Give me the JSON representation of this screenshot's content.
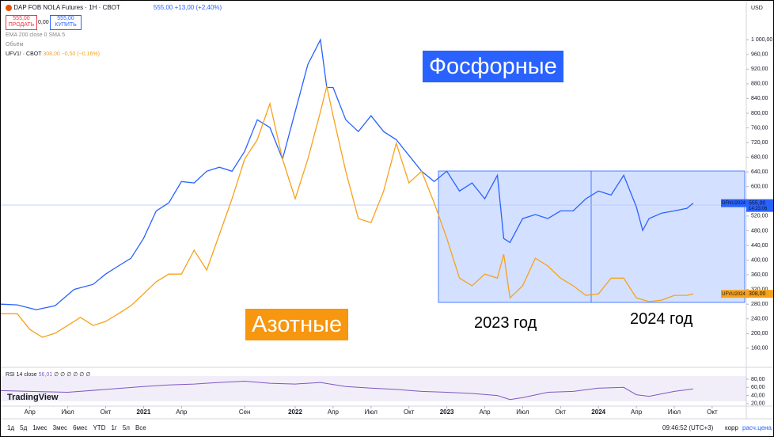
{
  "chart_data": [
    {
      "type": "line",
      "title": "DAP FOB NOLA Futures · 1Н · CBOT",
      "xlim": [
        0.7,
        59.7
      ],
      "xticks": [
        {
          "value": 3,
          "label": "Апр"
        },
        {
          "value": 6,
          "label": "Июл"
        },
        {
          "value": 9,
          "label": "Окт"
        },
        {
          "value": 12,
          "label": "2021"
        },
        {
          "value": 15,
          "label": "Апр"
        },
        {
          "value": 20,
          "label": "Сен"
        },
        {
          "value": 24,
          "label": "2022"
        },
        {
          "value": 27,
          "label": "Апр"
        },
        {
          "value": 30,
          "label": "Июл"
        },
        {
          "value": 33,
          "label": "Окт"
        },
        {
          "value": 36,
          "label": "2023"
        },
        {
          "value": 39,
          "label": "Апр"
        },
        {
          "value": 42,
          "label": "Июл"
        },
        {
          "value": 45,
          "label": "Окт"
        },
        {
          "value": 48,
          "label": "2024"
        },
        {
          "value": 51,
          "label": "Апр"
        },
        {
          "value": 54,
          "label": "Июл"
        },
        {
          "value": 57,
          "label": "Окт"
        }
      ],
      "ylim": [
        108,
        1106
      ],
      "yticks": [
        {
          "value": 1000,
          "label": "1 000,00"
        },
        {
          "value": 960,
          "label": "960,00"
        },
        {
          "value": 920,
          "label": "920,00"
        },
        {
          "value": 880,
          "label": "880,00"
        },
        {
          "value": 840,
          "label": "840,00"
        },
        {
          "value": 800,
          "label": "800,00"
        },
        {
          "value": 760,
          "label": "760,00"
        },
        {
          "value": 720,
          "label": "720,00"
        },
        {
          "value": 680,
          "label": "680,00"
        },
        {
          "value": 640,
          "label": "640,00"
        },
        {
          "value": 600,
          "label": "600,00"
        },
        {
          "value": 520,
          "label": "520,00"
        },
        {
          "value": 480,
          "label": "480,00"
        },
        {
          "value": 440,
          "label": "440,00"
        },
        {
          "value": 400,
          "label": "400,00"
        },
        {
          "value": 360,
          "label": "360,00"
        },
        {
          "value": 320,
          "label": "320,00"
        },
        {
          "value": 280,
          "label": "280,00"
        },
        {
          "value": 240,
          "label": "240,00"
        },
        {
          "value": 200,
          "label": "200,00"
        },
        {
          "value": 160,
          "label": "160,00"
        }
      ],
      "grid": false,
      "series": [
        {
          "name": "DFNU2024",
          "color": "#2962ff",
          "last_value_label": "555,00",
          "countdown": "14:23:06",
          "x": [
            0.7,
            2,
            3.5,
            5,
            6.5,
            8,
            9,
            10,
            11,
            12,
            13,
            14,
            15,
            16,
            17,
            18,
            19,
            20,
            21,
            22,
            23,
            24,
            25,
            26,
            26.5,
            27,
            28,
            29,
            30,
            31,
            32,
            33,
            34,
            35,
            36,
            37,
            38,
            39,
            40,
            40.5,
            41,
            42,
            43,
            44,
            45,
            46,
            47,
            48,
            49,
            50,
            51,
            51.5,
            52,
            53,
            54,
            55,
            55.5
          ],
          "values": [
            280,
            278,
            265,
            276,
            320,
            334,
            362,
            384,
            405,
            459,
            534,
            556,
            614,
            610,
            642,
            653,
            642,
            696,
            782,
            761,
            675,
            804,
            933,
            1000,
            870,
            870,
            782,
            750,
            793,
            750,
            728,
            685,
            642,
            614,
            642,
            588,
            610,
            567,
            631,
            459,
            448,
            513,
            524,
            513,
            534,
            534,
            567,
            588,
            577,
            631,
            545,
            481,
            513,
            528,
            534,
            541,
            555
          ]
        },
        {
          "name": "UFVU2024",
          "color": "#f7a21b",
          "last_value_label": "308,00",
          "x": [
            0.7,
            2,
            3,
            4,
            5,
            6,
            7,
            8,
            9,
            10,
            11,
            12,
            13,
            14,
            15,
            16,
            17,
            18,
            19,
            20,
            21,
            22,
            23,
            24,
            25,
            26,
            26.5,
            27,
            28,
            29,
            30,
            31,
            32,
            33,
            34,
            35,
            36,
            37,
            38,
            39,
            40,
            40.5,
            41,
            42,
            43,
            44,
            45,
            46,
            47,
            48,
            49,
            50,
            51,
            52,
            53,
            54,
            55,
            55.5
          ],
          "values": [
            254,
            254,
            211,
            190,
            201,
            222,
            244,
            222,
            233,
            254,
            276,
            308,
            341,
            362,
            362,
            427,
            373,
            470,
            567,
            675,
            728,
            826,
            675,
            567,
            675,
            804,
            873,
            793,
            642,
            513,
            502,
            588,
            718,
            610,
            642,
            556,
            459,
            351,
            330,
            362,
            351,
            416,
            297,
            330,
            405,
            384,
            351,
            330,
            304,
            308,
            351,
            351,
            297,
            287,
            291,
            304,
            304,
            308
          ]
        }
      ],
      "annotations": [
        "Фосфорные",
        "Азотные",
        "2023 год",
        "2024 год"
      ]
    },
    {
      "type": "line",
      "title": "RSI 14 close",
      "ylim": [
        14,
        109
      ],
      "yticks": [
        {
          "value": 80,
          "label": "80,00"
        },
        {
          "value": 60,
          "label": "60,00"
        },
        {
          "value": 40,
          "label": "40,00"
        },
        {
          "value": 20,
          "label": "20,00"
        }
      ],
      "series": [
        {
          "name": "RSI",
          "color": "#7e57c2",
          "last_value_label": "56,01",
          "x": [
            0.7,
            3,
            6,
            9,
            12,
            14,
            16,
            18,
            20,
            22,
            24,
            26,
            28,
            30,
            32,
            34,
            36,
            38,
            40,
            41,
            42,
            44,
            46,
            48,
            50,
            51,
            52,
            54,
            55.5
          ],
          "values": [
            52,
            50,
            48,
            55,
            62,
            66,
            68,
            72,
            75,
            70,
            68,
            72,
            62,
            58,
            55,
            50,
            48,
            45,
            40,
            30,
            35,
            48,
            50,
            58,
            60,
            42,
            38,
            50,
            56.01
          ]
        }
      ]
    }
  ],
  "legend": {
    "main_price": "555,00 +13,00 (+2,40%)",
    "sell_price": "555,00",
    "sell": "ПРОДАТЬ",
    "spread": "0,00",
    "buy_price": "555,00",
    "buy": "КУПИТЬ",
    "ema": "EMA 200 close 0 SMA 5",
    "volume": "Объём",
    "symbol2": "UFV1! · CBOT",
    "symbol2_price": "308,00 −0,50 (−0,16%)",
    "rsi_params": "∅ ∅ ∅ ∅ ∅ ∅"
  },
  "toolbar": {
    "timeframes": [
      "1д",
      "5д",
      "1мес",
      "3мес",
      "6мес",
      "YTD",
      "1г",
      "5л",
      "Все"
    ],
    "time": "09:46:52 (UTC+3)",
    "adjust": "корр",
    "settlement": "расч.цена",
    "currency": "USD",
    "logo": "TradingView"
  }
}
